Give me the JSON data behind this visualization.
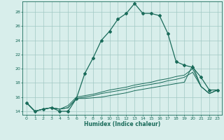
{
  "xlabel": "Humidex (Indice chaleur)",
  "xlim": [
    -0.5,
    23.5
  ],
  "ylim": [
    13.5,
    29.5
  ],
  "yticks": [
    14,
    16,
    18,
    20,
    22,
    24,
    26,
    28
  ],
  "xticks": [
    0,
    1,
    2,
    3,
    4,
    5,
    6,
    7,
    8,
    9,
    10,
    11,
    12,
    13,
    14,
    15,
    16,
    17,
    18,
    19,
    20,
    21,
    22,
    23
  ],
  "bg_color": "#d8eeeb",
  "grid_color": "#a0c8c4",
  "line_color": "#1a6b5a",
  "line1_x": [
    0,
    1,
    2,
    3,
    4,
    5,
    6,
    7,
    8,
    9,
    10,
    11,
    12,
    13,
    14,
    15,
    16,
    17,
    18,
    19,
    20,
    21,
    22,
    23
  ],
  "line1_y": [
    15.2,
    14.0,
    14.3,
    14.5,
    14.0,
    14.0,
    15.8,
    19.3,
    21.5,
    24.0,
    25.3,
    27.0,
    27.8,
    29.2,
    27.8,
    27.8,
    27.5,
    25.0,
    21.0,
    20.5,
    20.2,
    18.8,
    17.0,
    17.0
  ],
  "line2_x": [
    0,
    1,
    2,
    3,
    4,
    5,
    6,
    7,
    8,
    9,
    10,
    11,
    12,
    13,
    14,
    15,
    16,
    17,
    18,
    19,
    20,
    21,
    22,
    23
  ],
  "line2_y": [
    15.2,
    14.0,
    14.3,
    14.5,
    14.3,
    14.5,
    15.8,
    15.8,
    15.9,
    16.0,
    16.2,
    16.4,
    16.6,
    16.9,
    17.1,
    17.3,
    17.5,
    17.7,
    17.9,
    18.1,
    20.5,
    17.5,
    16.5,
    17.0
  ],
  "line3_x": [
    0,
    1,
    2,
    3,
    4,
    5,
    6,
    7,
    8,
    9,
    10,
    11,
    12,
    13,
    14,
    15,
    16,
    17,
    18,
    19,
    20,
    21,
    22,
    23
  ],
  "line3_y": [
    15.2,
    14.0,
    14.3,
    14.5,
    14.3,
    14.5,
    15.8,
    16.0,
    16.2,
    16.5,
    16.7,
    16.9,
    17.1,
    17.4,
    17.6,
    17.8,
    18.0,
    18.3,
    18.5,
    18.8,
    19.5,
    17.5,
    16.5,
    17.0
  ],
  "line4_x": [
    0,
    1,
    2,
    3,
    4,
    5,
    6,
    7,
    8,
    9,
    10,
    11,
    12,
    13,
    14,
    15,
    16,
    17,
    18,
    19,
    20,
    21,
    22,
    23
  ],
  "line4_y": [
    15.2,
    14.0,
    14.3,
    14.5,
    14.3,
    14.8,
    16.0,
    16.2,
    16.4,
    16.7,
    17.0,
    17.2,
    17.4,
    17.7,
    17.9,
    18.1,
    18.4,
    18.6,
    18.9,
    19.1,
    20.0,
    17.5,
    16.5,
    17.0
  ]
}
